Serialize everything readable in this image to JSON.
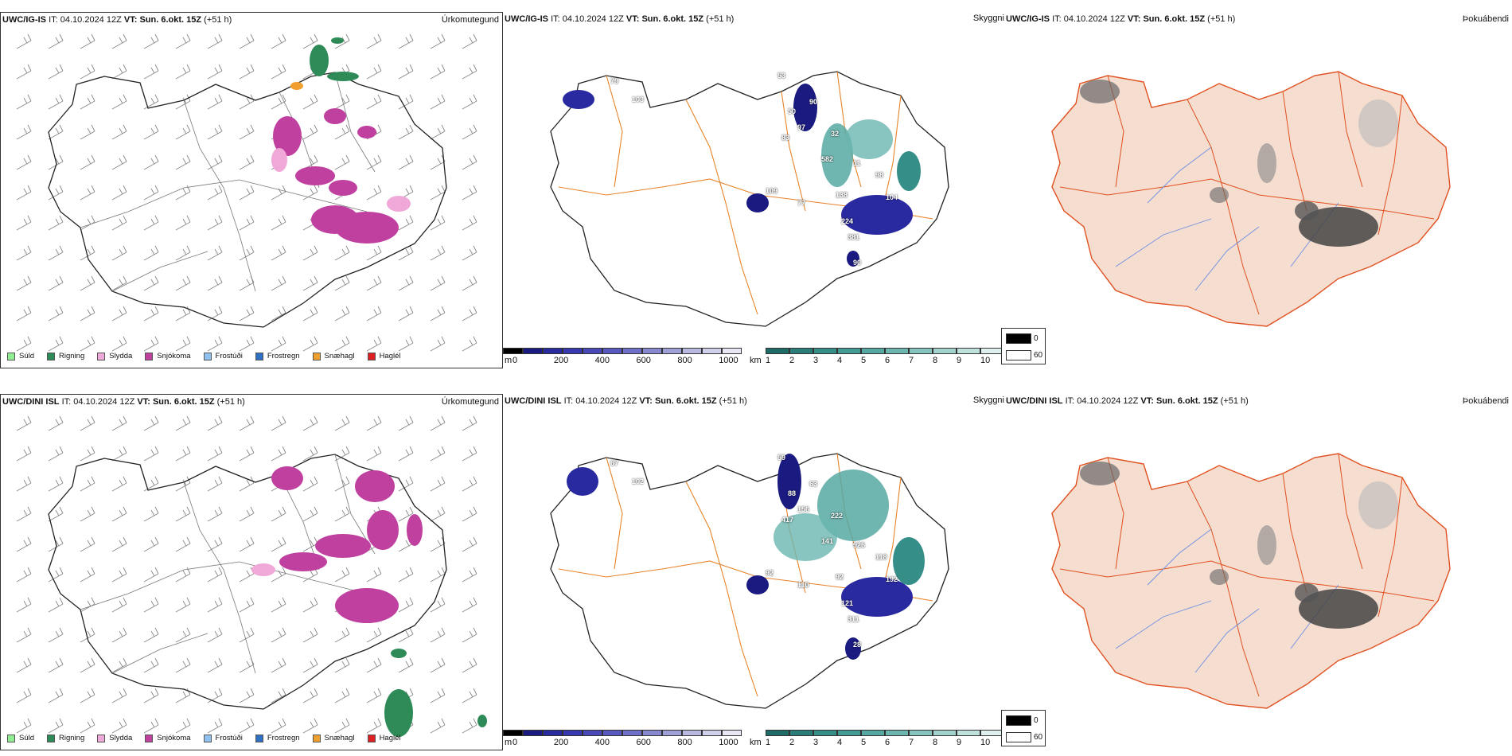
{
  "rows": [
    {
      "model_label": "UWC/IG-IS",
      "it_label": "IT:",
      "it_value": "04.10.2024 12Z",
      "vt_label": "VT:",
      "vt_value": "Sun. 6.okt. 15Z",
      "lead": "(+51 h)"
    },
    {
      "model_label": "UWC/DINI ISL",
      "it_label": "IT:",
      "it_value": "04.10.2024 12Z",
      "vt_label": "VT:",
      "vt_value": "Sun. 6.okt. 15Z",
      "lead": "(+51 h)"
    }
  ],
  "panel_kinds": {
    "precip": "Úrkomutegund",
    "visibility": "Skyggni",
    "fog": "Þokuábendi"
  },
  "precip_legend": [
    {
      "label": "Súld",
      "color": "#90ee90"
    },
    {
      "label": "Rigning",
      "color": "#2e8b57"
    },
    {
      "label": "Slydda",
      "color": "#f0a8d8"
    },
    {
      "label": "Snjókoma",
      "color": "#c040a0"
    },
    {
      "label": "Frostúði",
      "color": "#90c0f0"
    },
    {
      "label": "Frostregn",
      "color": "#3070c0"
    },
    {
      "label": "Snæhagl",
      "color": "#f0a030"
    },
    {
      "label": "Haglél",
      "color": "#e02020"
    }
  ],
  "cloudbase_colorbar": {
    "unit": "m",
    "ticks": [
      "0",
      "200",
      "400",
      "600",
      "800",
      "1000"
    ],
    "colors": [
      "#000000",
      "#1a1a80",
      "#2a2aa0",
      "#3838b0",
      "#4848b8",
      "#5858c0",
      "#7070c8",
      "#8888d0",
      "#a0a0d8",
      "#b8b8e0",
      "#d0d0ea",
      "#e8e8f4"
    ]
  },
  "visibility_colorbar": {
    "unit": "km",
    "ticks": [
      "1",
      "2",
      "3",
      "4",
      "5",
      "6",
      "7",
      "8",
      "9",
      "10"
    ],
    "colors": [
      "#1f6b68",
      "#2a7d78",
      "#368e88",
      "#449a94",
      "#56a8a2",
      "#6cb6b0",
      "#86c4be",
      "#a2d2cc",
      "#c0e2dc",
      "#e0f0ee"
    ]
  },
  "fog_legend": [
    {
      "label": "0",
      "color": "#000000"
    },
    {
      "label": "60",
      "color": "#ffffff"
    }
  ],
  "ceiling_labels_top": [
    "79",
    "103",
    "53",
    "50",
    "90",
    "83",
    "97",
    "32",
    "582",
    "11",
    "109",
    "77",
    "138",
    "98",
    "104",
    "224",
    "381",
    "90"
  ],
  "ceiling_labels_bottom": [
    "67",
    "102",
    "59",
    "88",
    "63",
    "417",
    "156",
    "222",
    "141",
    "926",
    "92",
    "110",
    "92",
    "118",
    "192",
    "121",
    "311",
    "28"
  ]
}
